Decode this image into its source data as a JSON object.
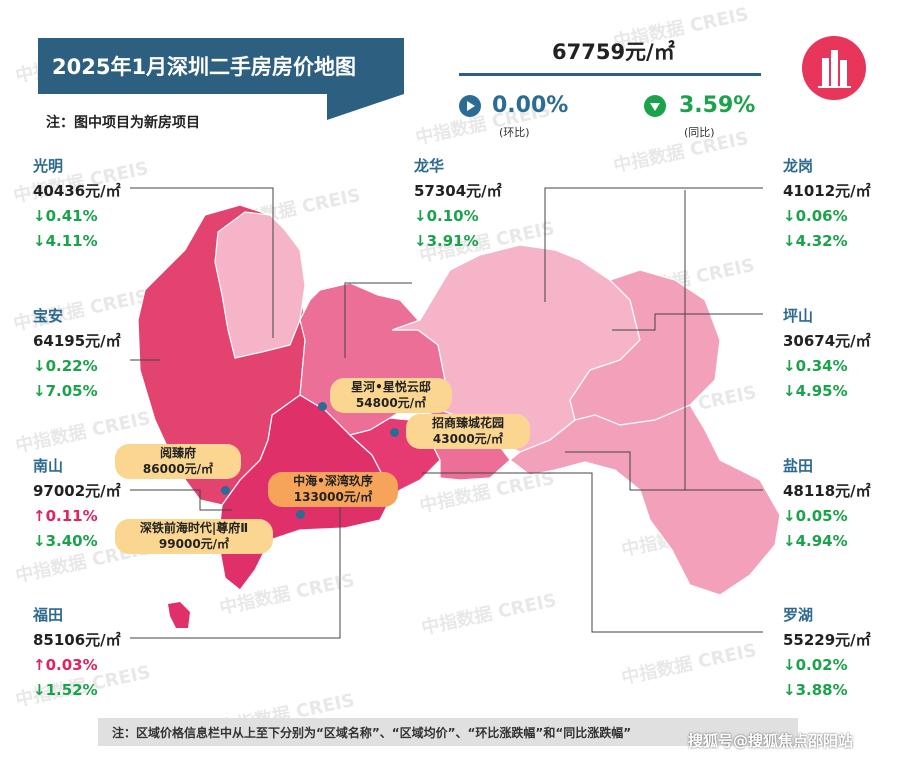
{
  "title": "2025年1月深圳二手房房价地图",
  "note_top": "注：图中项目为新房项目",
  "overall": {
    "avg_price": "67759元/㎡",
    "mom_value": "0.00%",
    "mom_label": "(环比)",
    "yoy_value": "3.59%",
    "yoy_label": "(同比)"
  },
  "districts": [
    {
      "name": "光明",
      "price": "40436元/㎡",
      "mom": "↓0.41%",
      "yoy": "↓4.11%"
    },
    {
      "name": "宝安",
      "price": "64195元/㎡",
      "mom": "↓0.22%",
      "yoy": "↓7.05%"
    },
    {
      "name": "南山",
      "price": "97002元/㎡",
      "mom": "↑0.11%",
      "yoy": "↓3.40%"
    },
    {
      "name": "福田",
      "price": "85106元/㎡",
      "mom": "↑0.03%",
      "yoy": "↓1.52%"
    },
    {
      "name": "龙华",
      "price": "57304元/㎡",
      "mom": "↓0.10%",
      "yoy": "↓3.91%"
    },
    {
      "name": "龙岗",
      "price": "41012元/㎡",
      "mom": "↓0.06%",
      "yoy": "↓4.32%"
    },
    {
      "name": "坪山",
      "price": "30674元/㎡",
      "mom": "↓0.34%",
      "yoy": "↓4.95%"
    },
    {
      "name": "盐田",
      "price": "48118元/㎡",
      "mom": "↓0.05%",
      "yoy": "↓4.94%"
    },
    {
      "name": "罗湖",
      "price": "55229元/㎡",
      "mom": "↓0.02%",
      "yoy": "↓3.88%"
    }
  ],
  "projects": [
    {
      "name": "星河•星悦云邸",
      "price": "54800元/㎡"
    },
    {
      "name": "招商臻城花园",
      "price": "43000元/㎡"
    },
    {
      "name": "阅臻府",
      "price": "86000元/㎡"
    },
    {
      "name": "中海•深湾玖序",
      "price": "133000元/㎡"
    },
    {
      "name": "深铁前海时代|尊府Ⅱ",
      "price": "99000元/㎡"
    }
  ],
  "footer_note": "注：区域价格信息栏中从上至下分别为“区域名称”、“区域均价”、“环比涨跌幅”和“同比涨跌幅”",
  "watermark": "中指数据 CREIS",
  "source": "搜狐号@搜狐焦点邵阳站",
  "colors": {
    "title_bg": "#2d6080",
    "up": "#e0245e",
    "down": "#1aa34a",
    "flat": "#2a6c93",
    "lightest": "#f6b4c8",
    "light": "#f3a0bb",
    "medium": "#ec6f98",
    "dark": "#e2436f",
    "darkest": "#e0306a",
    "label_yellow": "#fbd690",
    "label_orange": "#f6a45a"
  }
}
